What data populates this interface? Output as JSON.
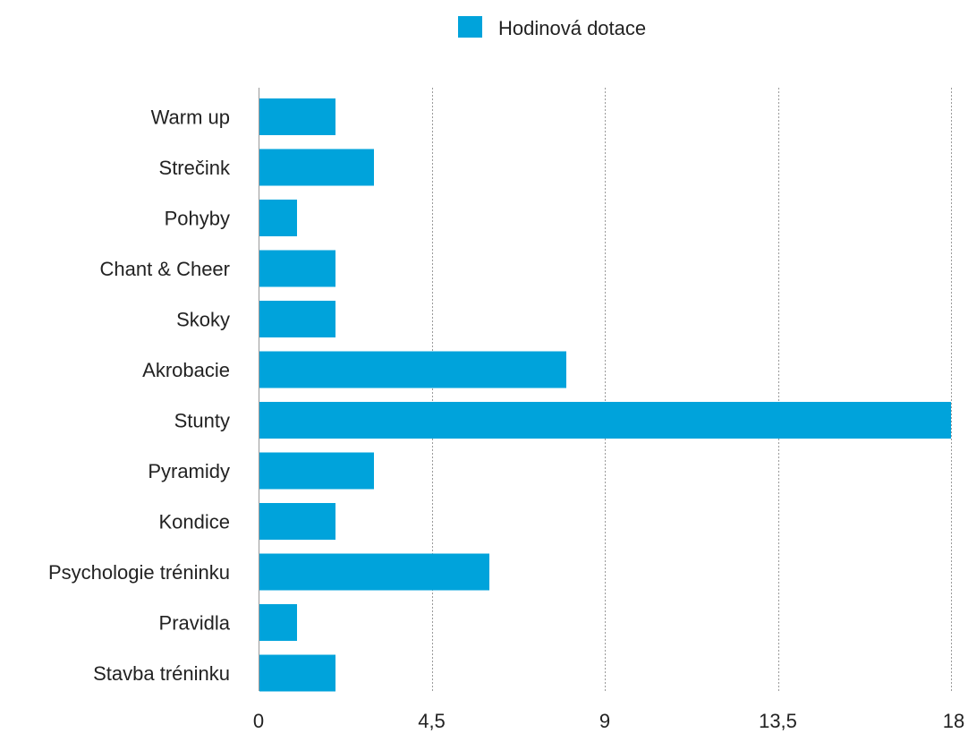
{
  "chart_data": {
    "type": "bar",
    "orientation": "horizontal",
    "categories": [
      "Warm up",
      "Strečink",
      "Pohyby",
      "Chant & Cheer",
      "Skoky",
      "Akrobacie",
      "Stunty",
      "Pyramidy",
      "Kondice",
      "Psychologie tréninku",
      "Pravidla",
      "Stavba tréninku"
    ],
    "series": [
      {
        "name": "Hodinová dotace",
        "values": [
          2,
          3,
          1,
          2,
          2,
          8,
          18,
          3,
          2,
          6,
          1,
          2
        ],
        "color": "#00a3db"
      }
    ],
    "xlim": [
      0,
      18
    ],
    "xticks": [
      0,
      4.5,
      9,
      13.5,
      18
    ],
    "xtick_labels": [
      "0",
      "4,5",
      "9",
      "13,5",
      "18"
    ],
    "grid": "vertical dotted",
    "legend_position": "top-center"
  }
}
